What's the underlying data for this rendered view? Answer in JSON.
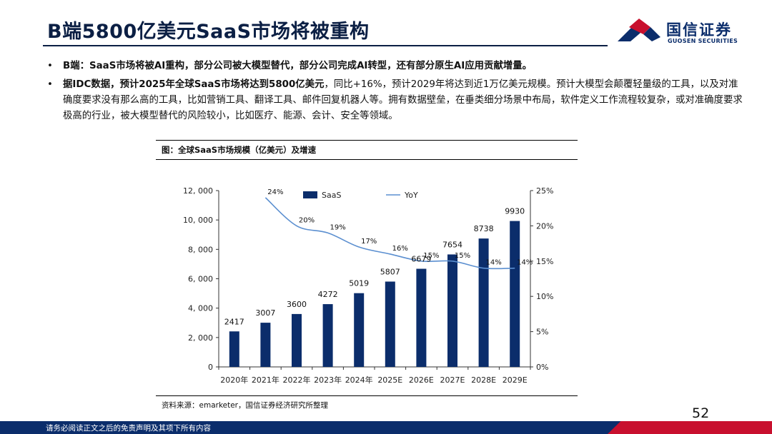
{
  "header": {
    "title": "B端5800亿美元SaaS市场将被重构",
    "logo_cn": "国信证券",
    "logo_en": "GUOSEN SECURITIES"
  },
  "bullets": [
    {
      "bold_text": "B端：SaaS市场将被AI重构，部分公司被大模型替代，部分公司完成AI转型，还有部分原生AI应用贡献增量。",
      "normal_text": ""
    },
    {
      "bold_text": "据IDC数据，预计2025年全球SaaS市场将达到5800亿美元",
      "normal_text": "，同比+16%，预计2029年将达到近1万亿美元规模。预计大模型会颠覆轻量级的工具，以及对准确度要求没有那么高的工具，比如营销工具、翻译工具、邮件回复机器人等。拥有数据壁垒，在垂类细分场景中布局，软件定义工作流程较复杂，或对准确度要求极高的行业，被大模型替代的风险较小，比如医疗、能源、会计、安全等领域。"
    }
  ],
  "figure": {
    "title": "图：全球SaaS市场规模（亿美元）及增速",
    "source": "资料来源：emarketer，国信证券经济研究所整理"
  },
  "chart_data": {
    "type": "bar",
    "categories": [
      "2020年",
      "2021年",
      "2022年",
      "2023年",
      "2024年",
      "2025E",
      "2026E",
      "2027E",
      "2028E",
      "2029E"
    ],
    "series": [
      {
        "name": "SaaS",
        "type": "bar",
        "axis": "left",
        "color": "#0b2d6b",
        "values": [
          2417,
          3007,
          3600,
          4272,
          5019,
          5807,
          6679,
          7654,
          8738,
          9930
        ]
      },
      {
        "name": "YoY",
        "type": "line",
        "axis": "right",
        "color": "#5b8fd0",
        "values": [
          null,
          24,
          20,
          19,
          17,
          16,
          15,
          15,
          14,
          14
        ]
      }
    ],
    "yoy_labels": [
      "",
      "24%",
      "20%",
      "19%",
      "17%",
      "16%",
      "15%",
      "15%",
      "14%",
      "14%"
    ],
    "left_axis": {
      "min": 0,
      "max": 12000,
      "ticks": [
        "0",
        "2, 000",
        "4, 000",
        "6, 000",
        "8, 000",
        "10, 000",
        "12, 000"
      ]
    },
    "right_axis": {
      "min": 0,
      "max": 25,
      "ticks": [
        "0%",
        "5%",
        "10%",
        "15%",
        "20%",
        "25%"
      ]
    },
    "legend": {
      "position": "top-center"
    }
  },
  "footer": {
    "page_number": "52",
    "disclaimer": "请务必阅读正文之后的免责声明及其项下所有内容"
  }
}
